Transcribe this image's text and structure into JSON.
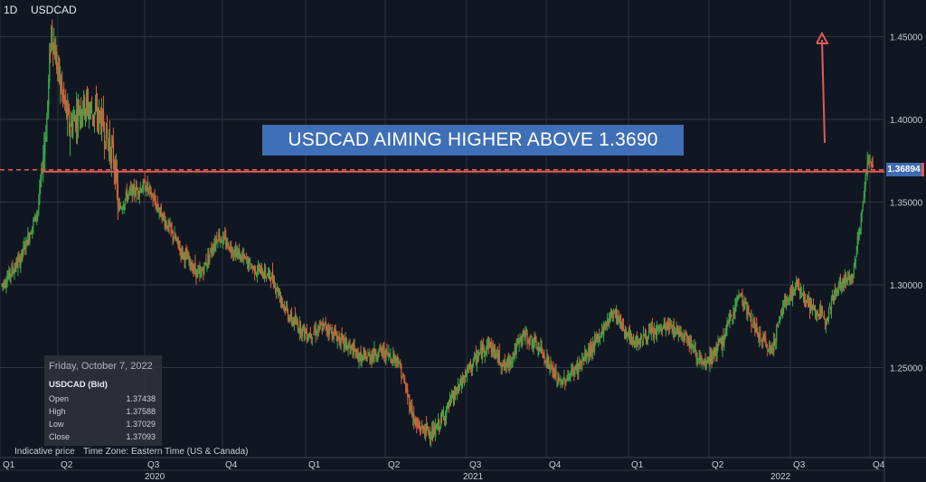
{
  "header": {
    "interval": "1D",
    "symbol": "USDCAD"
  },
  "banner": {
    "text": "USDCAD AIMING HIGHER ABOVE 1.3690"
  },
  "current_price_label": "1.36894",
  "info_panel": {
    "date": "Friday, October 7, 2022",
    "symbol": "USDCAD (Bid)",
    "rows": [
      {
        "label": "Open",
        "value": "1.37438"
      },
      {
        "label": "High",
        "value": "1.37588"
      },
      {
        "label": "Low",
        "value": "1.37029"
      },
      {
        "label": "Close",
        "value": "1.37093"
      }
    ]
  },
  "footer": {
    "indicative": "Indicative price",
    "timezone": "Time Zone: Eastern Time (US & Canada)"
  },
  "colors": {
    "background": "#111722",
    "up": "#3aa848",
    "down": "#d8613c",
    "level_line": "#e05a55",
    "banner": "#3f6fb6",
    "arrow": "#e05a55"
  },
  "chart_data": {
    "type": "candlestick",
    "symbol": "USDCAD",
    "interval": "1D",
    "ylim": [
      1.2,
      1.47
    ],
    "y_ticks": [
      "1.25000",
      "1.30000",
      "1.35000",
      "1.40000",
      "1.45000"
    ],
    "x_quarter_labels": [
      "Q1",
      "Q2",
      "Q3",
      "Q4",
      "Q1",
      "Q2",
      "Q3",
      "Q4",
      "Q1",
      "Q2",
      "Q3",
      "Q4"
    ],
    "x_year_labels": [
      "2020",
      "2021",
      "2022"
    ],
    "horizontal_level": 1.369,
    "approx_daily_closes": [
      [
        0,
        1.3
      ],
      [
        20,
        1.315
      ],
      [
        40,
        1.345
      ],
      [
        50,
        1.4
      ],
      [
        55,
        1.455
      ],
      [
        62,
        1.43
      ],
      [
        75,
        1.395
      ],
      [
        90,
        1.41
      ],
      [
        110,
        1.4
      ],
      [
        125,
        1.375
      ],
      [
        130,
        1.345
      ],
      [
        140,
        1.355
      ],
      [
        160,
        1.36
      ],
      [
        180,
        1.34
      ],
      [
        200,
        1.32
      ],
      [
        220,
        1.305
      ],
      [
        240,
        1.33
      ],
      [
        260,
        1.32
      ],
      [
        280,
        1.31
      ],
      [
        300,
        1.305
      ],
      [
        320,
        1.28
      ],
      [
        340,
        1.27
      ],
      [
        360,
        1.275
      ],
      [
        380,
        1.265
      ],
      [
        400,
        1.255
      ],
      [
        420,
        1.26
      ],
      [
        440,
        1.255
      ],
      [
        460,
        1.215
      ],
      [
        480,
        1.21
      ],
      [
        500,
        1.23
      ],
      [
        520,
        1.25
      ],
      [
        540,
        1.265
      ],
      [
        560,
        1.25
      ],
      [
        580,
        1.27
      ],
      [
        600,
        1.26
      ],
      [
        620,
        1.24
      ],
      [
        640,
        1.25
      ],
      [
        660,
        1.265
      ],
      [
        680,
        1.285
      ],
      [
        700,
        1.265
      ],
      [
        720,
        1.27
      ],
      [
        740,
        1.275
      ],
      [
        760,
        1.27
      ],
      [
        780,
        1.25
      ],
      [
        800,
        1.265
      ],
      [
        820,
        1.295
      ],
      [
        840,
        1.27
      ],
      [
        855,
        1.26
      ],
      [
        870,
        1.29
      ],
      [
        885,
        1.3
      ],
      [
        900,
        1.285
      ],
      [
        915,
        1.28
      ],
      [
        930,
        1.3
      ],
      [
        945,
        1.305
      ],
      [
        955,
        1.34
      ],
      [
        962,
        1.375
      ],
      [
        968,
        1.371
      ]
    ]
  }
}
